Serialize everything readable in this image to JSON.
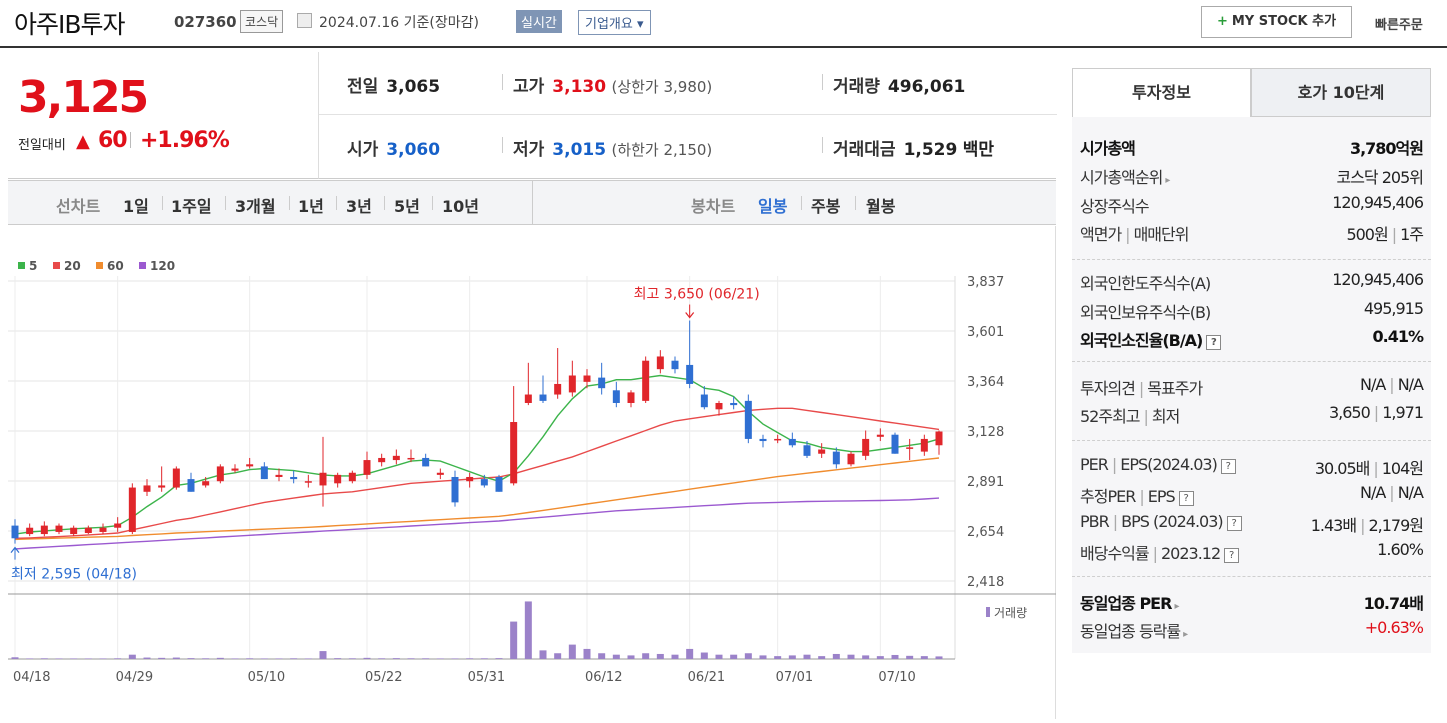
{
  "header": {
    "stock_name": "아주IB투자",
    "stock_code": "027360",
    "market": "코스닥",
    "date_text": "2024.07.16  기준(장마감)",
    "realtime_label": "실시간",
    "company_info_label": "기업개요 ▾",
    "my_stock_label": "MY STOCK 추가",
    "quick_order_label": "빠른주문"
  },
  "price": {
    "current": "3,125",
    "change_label": "전일대비",
    "change_arrow": "▲",
    "change_value": "60",
    "change_percent": "+1.96%"
  },
  "quotes": {
    "prev_close_label": "전일",
    "prev_close": "3,065",
    "high_label": "고가",
    "high": "3,130",
    "upper_limit": "(상한가 3,980)",
    "volume_label": "거래량",
    "volume": "496,061",
    "open_label": "시가",
    "open": "3,060",
    "low_label": "저가",
    "low": "3,015",
    "lower_limit": "(하한가 2,150)",
    "amount_label": "거래대금",
    "amount": "1,529",
    "amount_unit": "백만"
  },
  "period_bar": {
    "line_chart_label": "선차트",
    "line_periods": [
      "1일",
      "1주일",
      "3개월",
      "1년",
      "3년",
      "5년",
      "10년"
    ],
    "candle_chart_label": "봉차트",
    "candle_periods": [
      "일봉",
      "주봉",
      "월봉"
    ],
    "selected_candle": "일봉"
  },
  "chart_data": {
    "type": "candlestick",
    "legend": [
      {
        "name": "5",
        "color": "#3cb44b"
      },
      {
        "name": "20",
        "color": "#e84a4a"
      },
      {
        "name": "60",
        "color": "#f08c2e"
      },
      {
        "name": "120",
        "color": "#9b59d0"
      }
    ],
    "y_ticks": [
      "3,837",
      "3,601",
      "3,364",
      "3,128",
      "2,891",
      "2,654",
      "2,418"
    ],
    "ylim": [
      2418,
      3837
    ],
    "x_ticks": [
      {
        "label": "04/18",
        "index": 0
      },
      {
        "label": "04/29",
        "index": 7
      },
      {
        "label": "05/10",
        "index": 16
      },
      {
        "label": "05/22",
        "index": 24
      },
      {
        "label": "05/31",
        "index": 31
      },
      {
        "label": "06/12",
        "index": 39
      },
      {
        "label": "06/21",
        "index": 46
      },
      {
        "label": "07/01",
        "index": 52
      },
      {
        "label": "07/10",
        "index": 59
      }
    ],
    "max_annotation": "최고 3,650 (06/21)",
    "max_index": 46,
    "max_value": 3650,
    "min_annotation": "최저 2,595 (04/18)",
    "min_index": 0,
    "min_value": 2595,
    "volume_label": "거래량",
    "candles": [
      {
        "o": 2680,
        "h": 2710,
        "l": 2595,
        "c": 2620
      },
      {
        "o": 2640,
        "h": 2690,
        "l": 2630,
        "c": 2670
      },
      {
        "o": 2640,
        "h": 2700,
        "l": 2630,
        "c": 2680
      },
      {
        "o": 2650,
        "h": 2690,
        "l": 2640,
        "c": 2680
      },
      {
        "o": 2640,
        "h": 2680,
        "l": 2630,
        "c": 2670
      },
      {
        "o": 2645,
        "h": 2680,
        "l": 2640,
        "c": 2670
      },
      {
        "o": 2650,
        "h": 2690,
        "l": 2640,
        "c": 2670
      },
      {
        "o": 2670,
        "h": 2720,
        "l": 2650,
        "c": 2690
      },
      {
        "o": 2650,
        "h": 2880,
        "l": 2640,
        "c": 2860
      },
      {
        "o": 2840,
        "h": 2900,
        "l": 2820,
        "c": 2870
      },
      {
        "o": 2860,
        "h": 2960,
        "l": 2840,
        "c": 2870
      },
      {
        "o": 2860,
        "h": 2960,
        "l": 2850,
        "c": 2950
      },
      {
        "o": 2900,
        "h": 2930,
        "l": 2840,
        "c": 2840
      },
      {
        "o": 2870,
        "h": 2910,
        "l": 2860,
        "c": 2890
      },
      {
        "o": 2890,
        "h": 2970,
        "l": 2880,
        "c": 2960
      },
      {
        "o": 2940,
        "h": 2970,
        "l": 2930,
        "c": 2950
      },
      {
        "o": 2960,
        "h": 3000,
        "l": 2950,
        "c": 2970
      },
      {
        "o": 2960,
        "h": 2980,
        "l": 2900,
        "c": 2900
      },
      {
        "o": 2910,
        "h": 2950,
        "l": 2890,
        "c": 2920
      },
      {
        "o": 2910,
        "h": 2940,
        "l": 2880,
        "c": 2900
      },
      {
        "o": 2890,
        "h": 2920,
        "l": 2860,
        "c": 2890
      },
      {
        "o": 2870,
        "h": 3100,
        "l": 2770,
        "c": 2930
      },
      {
        "o": 2880,
        "h": 2930,
        "l": 2860,
        "c": 2920
      },
      {
        "o": 2890,
        "h": 2940,
        "l": 2880,
        "c": 2930
      },
      {
        "o": 2920,
        "h": 3030,
        "l": 2900,
        "c": 2990
      },
      {
        "o": 2980,
        "h": 3020,
        "l": 2960,
        "c": 3000
      },
      {
        "o": 2990,
        "h": 3040,
        "l": 2970,
        "c": 3010
      },
      {
        "o": 3000,
        "h": 3040,
        "l": 2980,
        "c": 3000
      },
      {
        "o": 3000,
        "h": 3020,
        "l": 2960,
        "c": 2960
      },
      {
        "o": 2920,
        "h": 2950,
        "l": 2900,
        "c": 2930
      },
      {
        "o": 2910,
        "h": 2940,
        "l": 2770,
        "c": 2790
      },
      {
        "o": 2890,
        "h": 2930,
        "l": 2860,
        "c": 2910
      },
      {
        "o": 2900,
        "h": 2920,
        "l": 2860,
        "c": 2870
      },
      {
        "o": 2910,
        "h": 2920,
        "l": 2840,
        "c": 2840
      },
      {
        "o": 2880,
        "h": 3340,
        "l": 2870,
        "c": 3170
      },
      {
        "o": 3260,
        "h": 3450,
        "l": 3250,
        "c": 3300
      },
      {
        "o": 3300,
        "h": 3390,
        "l": 3260,
        "c": 3270
      },
      {
        "o": 3300,
        "h": 3520,
        "l": 3280,
        "c": 3350
      },
      {
        "o": 3310,
        "h": 3460,
        "l": 3290,
        "c": 3390
      },
      {
        "o": 3360,
        "h": 3420,
        "l": 3330,
        "c": 3390
      },
      {
        "o": 3380,
        "h": 3450,
        "l": 3300,
        "c": 3330
      },
      {
        "o": 3320,
        "h": 3360,
        "l": 3240,
        "c": 3260
      },
      {
        "o": 3260,
        "h": 3320,
        "l": 3240,
        "c": 3310
      },
      {
        "o": 3270,
        "h": 3480,
        "l": 3260,
        "c": 3460
      },
      {
        "o": 3420,
        "h": 3510,
        "l": 3400,
        "c": 3480
      },
      {
        "o": 3460,
        "h": 3480,
        "l": 3400,
        "c": 3420
      },
      {
        "o": 3440,
        "h": 3650,
        "l": 3330,
        "c": 3350
      },
      {
        "o": 3300,
        "h": 3340,
        "l": 3230,
        "c": 3240
      },
      {
        "o": 3230,
        "h": 3270,
        "l": 3200,
        "c": 3260
      },
      {
        "o": 3260,
        "h": 3290,
        "l": 3230,
        "c": 3250
      },
      {
        "o": 3270,
        "h": 3300,
        "l": 3070,
        "c": 3090
      },
      {
        "o": 3090,
        "h": 3110,
        "l": 3050,
        "c": 3080
      },
      {
        "o": 3090,
        "h": 3110,
        "l": 3070,
        "c": 3090
      },
      {
        "o": 3090,
        "h": 3120,
        "l": 3050,
        "c": 3060
      },
      {
        "o": 3060,
        "h": 3080,
        "l": 3000,
        "c": 3010
      },
      {
        "o": 3020,
        "h": 3070,
        "l": 3000,
        "c": 3040
      },
      {
        "o": 3030,
        "h": 3050,
        "l": 2950,
        "c": 2970
      },
      {
        "o": 2970,
        "h": 3030,
        "l": 2960,
        "c": 3020
      },
      {
        "o": 3010,
        "h": 3130,
        "l": 2990,
        "c": 3090
      },
      {
        "o": 3100,
        "h": 3140,
        "l": 3080,
        "c": 3110
      },
      {
        "o": 3110,
        "h": 3120,
        "l": 3020,
        "c": 3020
      },
      {
        "o": 3050,
        "h": 3090,
        "l": 2990,
        "c": 3050
      },
      {
        "o": 3030,
        "h": 3110,
        "l": 3010,
        "c": 3090
      },
      {
        "o": 3060,
        "h": 3130,
        "l": 3015,
        "c": 3125
      }
    ],
    "ma5": [
      2640,
      2650,
      2655,
      2660,
      2665,
      2668,
      2672,
      2680,
      2720,
      2770,
      2815,
      2870,
      2880,
      2900,
      2920,
      2930,
      2945,
      2950,
      2945,
      2940,
      2930,
      2920,
      2915,
      2915,
      2925,
      2945,
      2965,
      2985,
      2990,
      2985,
      2960,
      2935,
      2910,
      2890,
      2930,
      3010,
      3100,
      3200,
      3280,
      3340,
      3350,
      3370,
      3370,
      3380,
      3390,
      3380,
      3370,
      3330,
      3320,
      3290,
      3220,
      3160,
      3120,
      3080,
      3070,
      3050,
      3040,
      3030,
      3030,
      3040,
      3050,
      3060,
      3070,
      3090
    ],
    "ma20": [
      2620,
      2622,
      2625,
      2628,
      2632,
      2636,
      2640,
      2645,
      2660,
      2675,
      2690,
      2705,
      2715,
      2730,
      2745,
      2760,
      2775,
      2790,
      2800,
      2810,
      2820,
      2830,
      2835,
      2840,
      2850,
      2860,
      2870,
      2880,
      2885,
      2890,
      2895,
      2900,
      2905,
      2910,
      2925,
      2945,
      2965,
      2985,
      3005,
      3030,
      3055,
      3080,
      3105,
      3130,
      3155,
      3175,
      3185,
      3195,
      3205,
      3215,
      3225,
      3230,
      3235,
      3235,
      3225,
      3215,
      3205,
      3195,
      3185,
      3175,
      3165,
      3155,
      3145,
      3135
    ],
    "ma60": [
      2615,
      2617,
      2619,
      2621,
      2623,
      2625,
      2627,
      2629,
      2633,
      2637,
      2641,
      2645,
      2648,
      2651,
      2654,
      2657,
      2660,
      2663,
      2666,
      2669,
      2672,
      2676,
      2680,
      2684,
      2688,
      2692,
      2696,
      2700,
      2704,
      2708,
      2712,
      2716,
      2720,
      2724,
      2732,
      2742,
      2752,
      2762,
      2772,
      2782,
      2792,
      2802,
      2812,
      2822,
      2832,
      2842,
      2852,
      2862,
      2872,
      2882,
      2892,
      2902,
      2912,
      2920,
      2928,
      2936,
      2944,
      2952,
      2960,
      2968,
      2976,
      2984,
      2992,
      3000
    ],
    "ma120": [
      2570,
      2574,
      2578,
      2582,
      2586,
      2590,
      2594,
      2598,
      2602,
      2606,
      2610,
      2614,
      2618,
      2622,
      2626,
      2630,
      2634,
      2638,
      2642,
      2646,
      2650,
      2654,
      2658,
      2662,
      2666,
      2670,
      2674,
      2678,
      2682,
      2686,
      2690,
      2694,
      2698,
      2702,
      2708,
      2714,
      2720,
      2726,
      2732,
      2738,
      2744,
      2750,
      2754,
      2758,
      2762,
      2766,
      2770,
      2774,
      2778,
      2782,
      2786,
      2788,
      2790,
      2792,
      2794,
      2795,
      2796,
      2797,
      2798,
      2799,
      2800,
      2802,
      2806,
      2810
    ],
    "volume": [
      12,
      4,
      5,
      4,
      4,
      4,
      4,
      5,
      30,
      10,
      8,
      10,
      6,
      5,
      8,
      4,
      5,
      4,
      4,
      5,
      4,
      55,
      6,
      5,
      8,
      5,
      6,
      5,
      5,
      4,
      4,
      5,
      5,
      6,
      260,
      400,
      60,
      40,
      100,
      70,
      40,
      30,
      25,
      40,
      35,
      30,
      70,
      45,
      30,
      30,
      40,
      25,
      20,
      25,
      30,
      20,
      35,
      30,
      25,
      20,
      28,
      22,
      20,
      18
    ],
    "volume_ylim": [
      0,
      410
    ]
  },
  "sidebar": {
    "tab_invest": "투자정보",
    "tab_orderbook": "호가 10단계",
    "rows": {
      "market_cap_label": "시가총액",
      "market_cap": "3,780억원",
      "market_cap_rank_label": "시가총액순위",
      "market_cap_rank": "코스닥 205위",
      "listed_shares_label": "상장주식수",
      "listed_shares": "120,945,406",
      "par_value_label": "액면가",
      "trade_unit_label": "매매단위",
      "par_value": "500원",
      "trade_unit": "1주",
      "foreign_limit_label": "외국인한도주식수(A)",
      "foreign_limit": "120,945,406",
      "foreign_hold_label": "외국인보유주식수(B)",
      "foreign_hold": "495,915",
      "foreign_ratio_label": "외국인소진율(B/A)",
      "foreign_ratio": "0.41%",
      "opinion_label": "투자의견",
      "target_label": "목표주가",
      "opinion": "N/A",
      "target": "N/A",
      "high52_label": "52주최고",
      "low52_label": "최저",
      "high52": "3,650",
      "low52": "1,971",
      "per_label": "PER",
      "eps_label": "EPS(2024.03)",
      "per": "30.05배",
      "eps": "104원",
      "est_per_label": "추정PER",
      "est_eps_label": "EPS",
      "est_per": "N/A",
      "est_eps": "N/A",
      "pbr_label": "PBR",
      "bps_label": "BPS (2024.03)",
      "pbr": "1.43배",
      "bps": "2,179원",
      "div_label": "배당수익률",
      "div_date": "2023.12",
      "div": "1.60%",
      "ind_per_label": "동일업종 PER",
      "ind_per": "10.74배",
      "ind_chg_label": "동일업종 등락률",
      "ind_chg": "+0.63%"
    }
  }
}
